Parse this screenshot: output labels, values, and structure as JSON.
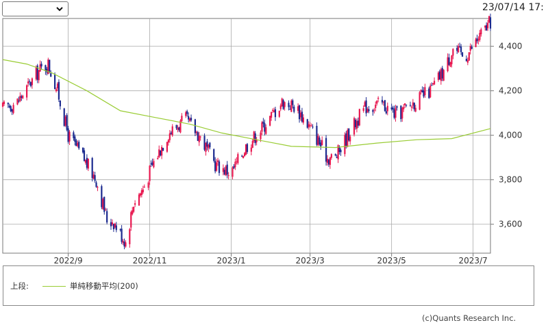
{
  "header": {
    "select_value": "",
    "timestamp": "23/07/14 17:"
  },
  "legend": {
    "position_label": "上段:",
    "series_label": "単純移動平均(200)",
    "line_color": "#99cc33"
  },
  "footer": {
    "copyright": "(c)Quants Research Inc."
  },
  "colors": {
    "up": "#e8174f",
    "down": "#1b2a8f",
    "ma": "#99cc33",
    "grid": "#aaaaaa"
  },
  "chart_data": {
    "type": "candlestick",
    "x_tick_labels": [
      "2022/9",
      "2022/11",
      "2023/1",
      "2023/3",
      "2023/5",
      "2023/7"
    ],
    "y_tick_labels": [
      "4,400",
      "4,200",
      "4,000",
      "3,800",
      "3,600"
    ],
    "y_ticks": [
      4400,
      4200,
      4000,
      3800,
      3600
    ],
    "ylim": [
      3470,
      4525
    ],
    "start_date": "2022-07-14",
    "end_date": "2023-07-14",
    "series": [
      {
        "name": "単純移動平均(200)",
        "type": "line",
        "color": "#99cc33",
        "points": [
          [
            "2022-07-14",
            4340
          ],
          [
            "2022-08-01",
            4320
          ],
          [
            "2022-08-20",
            4280
          ],
          [
            "2022-09-15",
            4200
          ],
          [
            "2022-10-10",
            4110
          ],
          [
            "2022-11-05",
            4080
          ],
          [
            "2022-12-01",
            4050
          ],
          [
            "2022-12-25",
            4010
          ],
          [
            "2023-01-20",
            3980
          ],
          [
            "2023-02-15",
            3950
          ],
          [
            "2023-03-20",
            3945
          ],
          [
            "2023-04-20",
            3965
          ],
          [
            "2023-05-20",
            3980
          ],
          [
            "2023-06-15",
            3985
          ],
          [
            "2023-07-14",
            4030
          ]
        ]
      },
      {
        "name": "price_path",
        "type": "candles",
        "points": [
          [
            "2022-07-14",
            4120
          ],
          [
            "2022-07-25",
            4150
          ],
          [
            "2022-08-10",
            4290
          ],
          [
            "2022-08-17",
            4320
          ],
          [
            "2022-08-24",
            4200
          ],
          [
            "2022-09-01",
            4000
          ],
          [
            "2022-09-12",
            3900
          ],
          [
            "2022-09-22",
            3800
          ],
          [
            "2022-10-01",
            3600
          ],
          [
            "2022-10-04",
            3620
          ],
          [
            "2022-10-14",
            3520
          ],
          [
            "2022-10-20",
            3700
          ],
          [
            "2022-10-27",
            3760
          ],
          [
            "2022-11-04",
            3880
          ],
          [
            "2022-11-15",
            4010
          ],
          [
            "2022-11-28",
            4070
          ],
          [
            "2022-12-08",
            4000
          ],
          [
            "2022-12-20",
            3870
          ],
          [
            "2023-01-01",
            3830
          ],
          [
            "2023-01-12",
            3950
          ],
          [
            "2023-01-25",
            4040
          ],
          [
            "2023-02-08",
            4150
          ],
          [
            "2023-02-18",
            4130
          ],
          [
            "2023-03-05",
            4000
          ],
          [
            "2023-03-14",
            3900
          ],
          [
            "2023-03-20",
            3900
          ],
          [
            "2023-04-01",
            4030
          ],
          [
            "2023-04-12",
            4130
          ],
          [
            "2023-04-24",
            4140
          ],
          [
            "2023-05-05",
            4090
          ],
          [
            "2023-05-18",
            4150
          ],
          [
            "2023-05-30",
            4200
          ],
          [
            "2023-06-10",
            4300
          ],
          [
            "2023-06-16",
            4390
          ],
          [
            "2023-06-25",
            4350
          ],
          [
            "2023-07-03",
            4420
          ],
          [
            "2023-07-14",
            4510
          ]
        ]
      }
    ],
    "grid": true
  }
}
